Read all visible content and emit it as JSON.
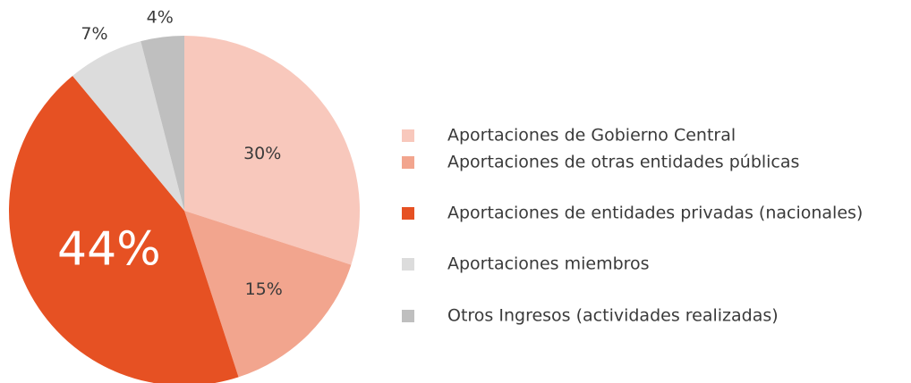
{
  "chart_data": {
    "type": "pie",
    "categories": [
      "Aportaciones de Gobierno Central",
      "Aportaciones de otras entidades públicas",
      "Aportaciones de entidades privadas (nacionales)",
      "Aportaciones miembros",
      "Otros Ingresos (actividades realizadas)"
    ],
    "values": [
      30,
      15,
      44,
      7,
      4
    ],
    "value_labels": [
      "30%",
      "15%",
      "44%",
      "7%",
      "4%"
    ],
    "colors": [
      "#f8c8bc",
      "#f2a58e",
      "#e65123",
      "#dcdcdc",
      "#bfbfbf"
    ],
    "legend": "right"
  }
}
